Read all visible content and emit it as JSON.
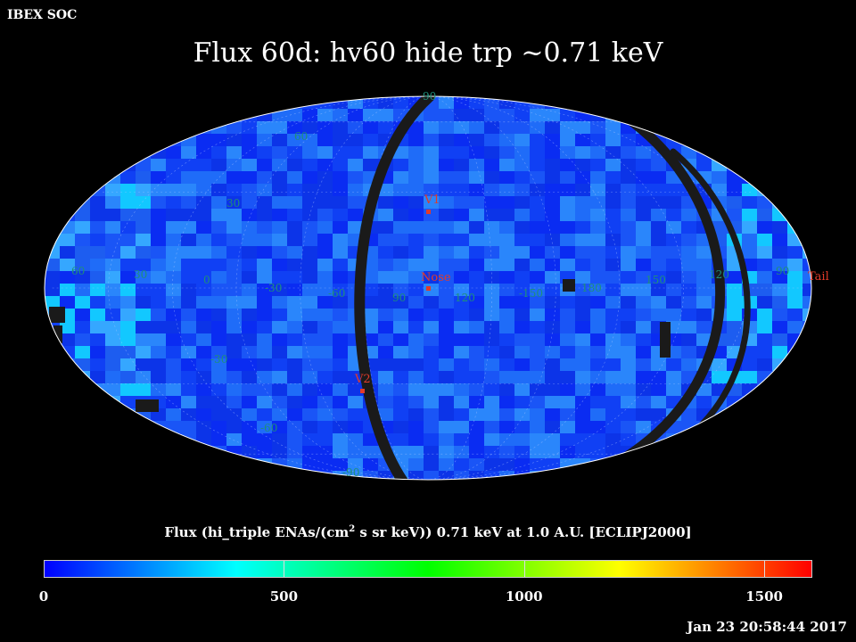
{
  "header": {
    "corner_label": "IBEX SOC",
    "title": "Flux   60d: hv60 hide trp ~0.71 keV",
    "timestamp": "Jan 23 20:58:44 2017"
  },
  "map": {
    "projection": "Aitoff (ecliptic, J2000)",
    "fill_colors": [
      "#0a2cf2",
      "#1040f4",
      "#1a55f6",
      "#0c34e8",
      "#1f6cf8",
      "#2a86fb",
      "#1d5df0",
      "#35a7ff",
      "#12c8ff"
    ],
    "gap_color": "#1a1a1a",
    "outline_color": "#ffffff",
    "grid_color": "#b0c8ff",
    "latitude_labels": [
      "90",
      "60",
      "30",
      "-30",
      "-60",
      "-90"
    ],
    "longitude_labels": [
      "60",
      "30",
      "0",
      "-30",
      "-60",
      "90",
      "120",
      "-150",
      "180",
      "150",
      "120",
      "90"
    ],
    "markers": [
      {
        "label": "V1",
        "color": "#e23b2a"
      },
      {
        "label": "Nose",
        "color": "#e23b2a"
      },
      {
        "label": "V2",
        "color": "#e23b2a"
      },
      {
        "label": "Tail",
        "color": "#e23b2a"
      }
    ]
  },
  "colorbar": {
    "title_prefix": "Flux (hi_triple ENAs/(cm",
    "title_sup": "2",
    "title_suffix": " s sr keV))  0.71 keV at 1.0 A.U. [ECLIPJ2000]",
    "min": 0,
    "max": 1600,
    "tick_labels": [
      "0",
      "500",
      "1000",
      "1500"
    ],
    "tick_values": [
      0,
      500,
      1000,
      1500
    ],
    "gradient_colors": [
      "#0000ff",
      "#0080ff",
      "#00ffff",
      "#00ff80",
      "#00ff00",
      "#80ff00",
      "#ffff00",
      "#ff8000",
      "#ff0000"
    ]
  }
}
